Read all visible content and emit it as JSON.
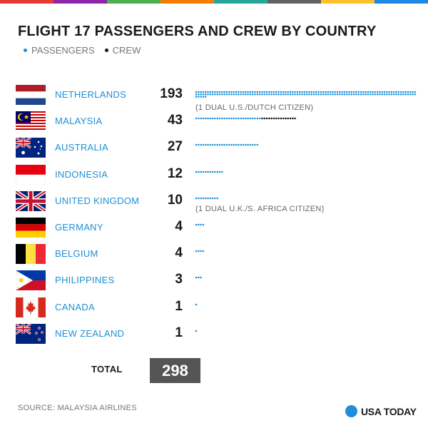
{
  "top_bar_colors": [
    "#e53935",
    "#8e24aa",
    "#4caf50",
    "#f57c00",
    "#26a69a",
    "#616161",
    "#fbc02d",
    "#1e88e5"
  ],
  "title": "FLIGHT 17 PASSENGERS AND CREW BY COUNTRY",
  "legend": [
    {
      "label": "PASSENGERS",
      "color": "#1e8fd6"
    },
    {
      "label": "CREW",
      "color": "#111111"
    }
  ],
  "chart_data": {
    "type": "bar",
    "title": "FLIGHT 17 PASSENGERS AND CREW BY COUNTRY",
    "categories": [
      "NETHERLANDS",
      "MALAYSIA",
      "AUSTRALIA",
      "INDONESIA",
      "UNITED KINGDOM",
      "GERMANY",
      "BELGIUM",
      "PHILIPPINES",
      "CANADA",
      "NEW ZEALAND"
    ],
    "totals": [
      193,
      43,
      27,
      12,
      10,
      4,
      4,
      3,
      1,
      1
    ],
    "series": [
      {
        "name": "PASSENGERS",
        "values": [
          193,
          28,
          27,
          12,
          10,
          4,
          4,
          3,
          1,
          1
        ]
      },
      {
        "name": "CREW",
        "values": [
          0,
          15,
          0,
          0,
          0,
          0,
          0,
          0,
          0,
          0
        ]
      }
    ],
    "notes": [
      {
        "category": "NETHERLANDS",
        "text": "(1 DUAL U.S./DUTCH CITIZEN)"
      },
      {
        "category": "UNITED KINGDOM",
        "text": "(1 DUAL U.K./S. AFRICA CITIZEN)"
      }
    ],
    "total_label": "TOTAL",
    "total": "298"
  },
  "flags": [
    "netherlands-flag",
    "malaysia-flag",
    "australia-flag",
    "indonesia-flag",
    "united-kingdom-flag",
    "germany-flag",
    "belgium-flag",
    "philippines-flag",
    "canada-flag",
    "new-zealand-flag"
  ],
  "source": "SOURCE: MALAYSIA AIRLINES",
  "logo_text": "USA TODAY"
}
